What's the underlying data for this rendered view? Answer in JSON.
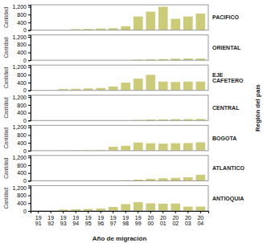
{
  "chart_data": [
    {
      "type": "bar",
      "title": "PACIFICO",
      "ylabel": "Cantidad",
      "categories": [
        "19\n91",
        "19\n92",
        "19\n93",
        "19\n94",
        "19\n95",
        "19\n96",
        "19\n97",
        "19\n98",
        "19\n99",
        "20\n00",
        "20\n01",
        "20\n02",
        "20\n03",
        "20\n04"
      ],
      "values": [
        10,
        10,
        20,
        50,
        60,
        80,
        100,
        200,
        700,
        950,
        1200,
        580,
        700,
        850
      ],
      "color": "#cccb7a",
      "ylim": [
        0,
        1300
      ],
      "yticks": [
        0,
        400,
        800,
        {
          "value": 1200,
          "label": "1,200"
        }
      ],
      "tick_labels": "y",
      "annotations": [
        "Región del país"
      ]
    },
    {
      "type": "bar",
      "title": "ORIENTAL",
      "ylabel": "Cantidad",
      "categories": [
        "19\n91",
        "19\n92",
        "19\n93",
        "19\n94",
        "19\n95",
        "19\n96",
        "19\n97",
        "19\n98",
        "19\n99",
        "20\n00",
        "20\n01",
        "20\n02",
        "20\n03",
        "20\n04"
      ],
      "values": [
        5,
        5,
        5,
        5,
        5,
        5,
        5,
        5,
        30,
        50,
        60,
        80,
        90,
        90
      ],
      "color": "#cccb7a",
      "ylim": [
        0,
        1300
      ],
      "yticks": [
        0,
        400,
        800,
        {
          "value": 1200,
          "label": "1,200"
        }
      ],
      "tick_labels": "y"
    },
    {
      "type": "bar",
      "title": "EJE\nCAFETERO",
      "ylabel": "Cantidad",
      "categories": [
        "19\n91",
        "19\n92",
        "19\n93",
        "19\n94",
        "19\n95",
        "19\n96",
        "19\n97",
        "19\n98",
        "19\n99",
        "20\n00",
        "20\n01",
        "20\n02",
        "20\n03",
        "20\n04"
      ],
      "values": [
        5,
        10,
        70,
        80,
        100,
        120,
        200,
        400,
        600,
        800,
        450,
        430,
        450,
        450
      ],
      "color": "#cccb7a",
      "ylim": [
        0,
        1300
      ],
      "yticks": [
        0,
        400,
        800,
        {
          "value": 1200,
          "label": "1,200"
        }
      ],
      "tick_labels": "y"
    },
    {
      "type": "bar",
      "title": "CENTRAL",
      "ylabel": "Cantidad",
      "categories": [
        "19\n91",
        "19\n92",
        "19\n93",
        "19\n94",
        "19\n95",
        "19\n96",
        "19\n97",
        "19\n98",
        "19\n99",
        "20\n00",
        "20\n01",
        "20\n02",
        "20\n03",
        "20\n04"
      ],
      "values": [
        5,
        5,
        5,
        5,
        5,
        5,
        5,
        5,
        30,
        50,
        60,
        70,
        70,
        80
      ],
      "color": "#cccb7a",
      "ylim": [
        0,
        1300
      ],
      "yticks": [
        0,
        400,
        800,
        {
          "value": 1200,
          "label": "1,200"
        }
      ],
      "tick_labels": "y"
    },
    {
      "type": "bar",
      "title": "BOGOTA",
      "ylabel": "Cantidad",
      "categories": [
        "19\n91",
        "19\n92",
        "19\n93",
        "19\n94",
        "19\n95",
        "19\n96",
        "19\n97",
        "19\n98",
        "19\n99",
        "20\n00",
        "20\n01",
        "20\n02",
        "20\n03",
        "20\n04"
      ],
      "values": [
        5,
        5,
        10,
        20,
        30,
        40,
        200,
        250,
        420,
        380,
        360,
        380,
        390,
        430
      ],
      "color": "#cccb7a",
      "ylim": [
        0,
        1300
      ],
      "yticks": [
        0,
        400,
        800,
        {
          "value": 1200,
          "label": "1,200"
        }
      ],
      "tick_labels": "y"
    },
    {
      "type": "bar",
      "title": "ATLANTICO",
      "ylabel": "Cantidad",
      "categories": [
        "19\n91",
        "19\n92",
        "19\n93",
        "19\n94",
        "19\n95",
        "19\n96",
        "19\n97",
        "19\n98",
        "19\n99",
        "20\n00",
        "20\n01",
        "20\n02",
        "20\n03",
        "20\n04"
      ],
      "values": [
        5,
        5,
        5,
        5,
        5,
        5,
        10,
        30,
        60,
        100,
        130,
        150,
        180,
        310
      ],
      "color": "#cccb7a",
      "ylim": [
        0,
        1300
      ],
      "yticks": [
        0,
        400,
        800,
        {
          "value": 1200,
          "label": "1,200"
        }
      ],
      "tick_labels": "y"
    },
    {
      "type": "bar",
      "title": "ANTIOQUIA",
      "ylabel": "Cantidad",
      "xlabel": "Año de migración",
      "categories": [
        "19\n91",
        "19\n92",
        "19\n93",
        "19\n94",
        "19\n95",
        "19\n96",
        "19\n97",
        "19\n98",
        "19\n99",
        "20\n00",
        "20\n01",
        "20\n02",
        "20\n03",
        "20\n04"
      ],
      "values": [
        5,
        10,
        70,
        80,
        100,
        120,
        200,
        350,
        450,
        390,
        370,
        380,
        220,
        220
      ],
      "color": "#cccb7a",
      "ylim": [
        0,
        1300
      ],
      "yticks": [
        0,
        400,
        800,
        {
          "value": 1200,
          "label": "1,200"
        }
      ]
    }
  ]
}
